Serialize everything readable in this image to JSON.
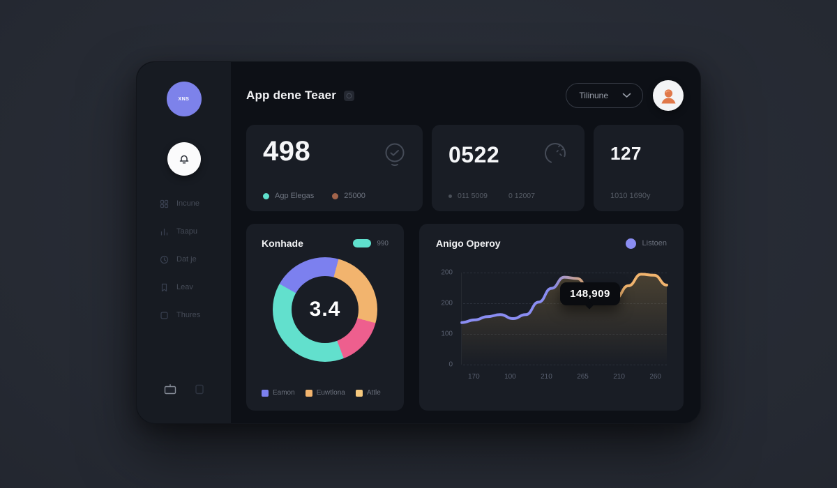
{
  "app": {
    "title": "App dene Teaer",
    "logo_text": "XNS",
    "dropdown_label": "Tilinune"
  },
  "sidebar": {
    "items": [
      {
        "label": "Incune"
      },
      {
        "label": "Taapu"
      },
      {
        "label": "Dat je"
      },
      {
        "label": "Leav"
      },
      {
        "label": "Thures"
      }
    ]
  },
  "stats": [
    {
      "value": "498",
      "legend": [
        {
          "label": "Agp Elegas",
          "color": "#5fe0cd"
        },
        {
          "label": "25000",
          "color": "#a2644b"
        }
      ]
    },
    {
      "value": "0522",
      "legend": [
        {
          "label": "011 5009",
          "color": "#4a5059"
        },
        {
          "label": "0 12007",
          "color": "#4a5059"
        }
      ]
    },
    {
      "value": "127",
      "subtitle": "1010 1690y"
    }
  ],
  "chart_data": [
    {
      "type": "donut",
      "title": "Konhade",
      "badge_label": "990",
      "badge_color": "#5fe0cd",
      "center_label": "3.4",
      "start_angle": 15,
      "segments": [
        {
          "name": "orange",
          "color": "#f2b46e",
          "value": 25
        },
        {
          "name": "pink",
          "color": "#ee5f8e",
          "value": 15
        },
        {
          "name": "teal",
          "color": "#62e0cd",
          "value": 39
        },
        {
          "name": "purple",
          "color": "#7c80ef",
          "value": 21
        }
      ],
      "legend": [
        {
          "label": "Eamon",
          "color": "#7c80ef"
        },
        {
          "label": "Euwtlona",
          "color": "#f2b46e"
        },
        {
          "label": "Attle",
          "color": "#f6c97e"
        }
      ]
    },
    {
      "type": "area",
      "title": "Anigo Operoy",
      "legend": [
        {
          "label": "Listoen",
          "color": "#8a8df2"
        }
      ],
      "tooltip": "148,909",
      "line_colors": [
        "#8a8df2",
        "#f1b46e"
      ],
      "area_color": "#8c7344",
      "ylim": [
        0,
        280
      ],
      "y_ticks": [
        "200",
        "200",
        "100",
        "0"
      ],
      "x_ticks": [
        "170",
        "100",
        "210",
        "265",
        "210",
        "260"
      ],
      "points": [
        128,
        136,
        146,
        152,
        140,
        152,
        190,
        232,
        266,
        262,
        226,
        198,
        202,
        240,
        275,
        272,
        242
      ],
      "grid": "dashed-horizontal",
      "legend_position": "top-right"
    }
  ]
}
